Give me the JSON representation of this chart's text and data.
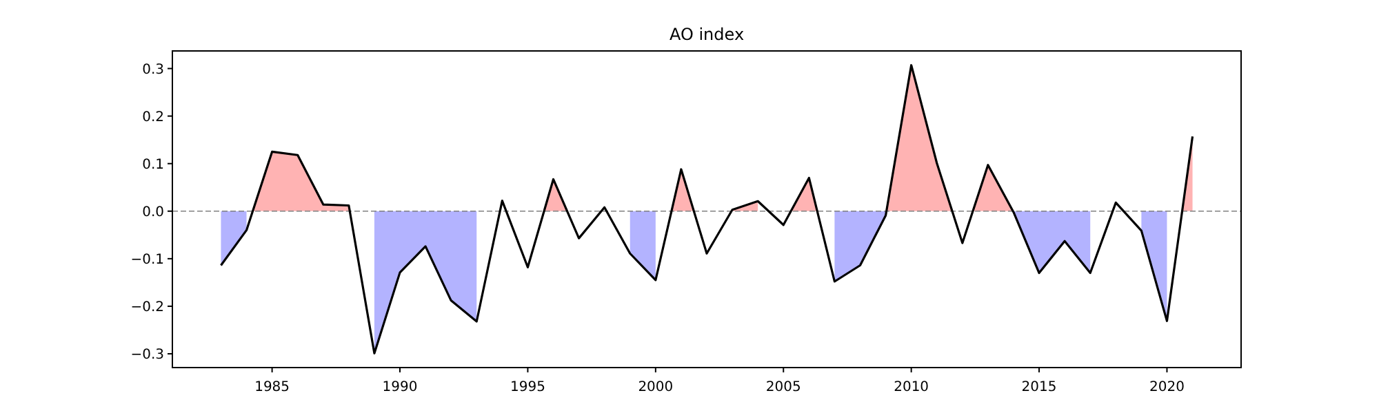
{
  "chart_data": {
    "type": "line",
    "title": "AO index",
    "x": [
      1983,
      1984,
      1985,
      1986,
      1987,
      1988,
      1989,
      1990,
      1991,
      1992,
      1993,
      1994,
      1995,
      1996,
      1997,
      1998,
      1999,
      2000,
      2001,
      2002,
      2003,
      2004,
      2005,
      2006,
      2007,
      2008,
      2009,
      2010,
      2011,
      2012,
      2013,
      2014,
      2015,
      2016,
      2017,
      2018,
      2019,
      2020,
      2021
    ],
    "series": [
      {
        "type": "area",
        "color": "#ffb3b3",
        "x": [
          1984.24,
          1985,
          1986,
          1987,
          1988,
          1988.5,
          1995.64,
          1996,
          1996.54,
          1997,
          2000.62,
          2001,
          2001.5,
          2002,
          2003,
          2004,
          2004.5,
          2005.29,
          2006,
          2006.32,
          2007,
          2009.03,
          2010,
          2011,
          2011.6,
          2012,
          2012.41,
          2013,
          2013.98,
          2014,
          2020.6,
          2021
        ],
        "values": [
          0,
          0.125,
          0.118,
          0.014,
          0.012,
          null,
          0,
          0.067,
          0,
          null,
          0,
          0.088,
          0,
          null,
          0.003,
          0.021,
          null,
          0,
          0.07,
          0,
          null,
          0,
          0.307,
          0.101,
          0,
          null,
          0,
          0.097,
          0,
          null,
          0,
          0.157
        ]
      },
      {
        "type": "area",
        "color": "#b3b3ff",
        "x": [
          1983,
          1984,
          1986,
          1989,
          1990,
          1991,
          1992,
          1993,
          1995,
          1999,
          2000,
          2003,
          2007,
          2008,
          2009,
          2010,
          2014,
          2015,
          2016,
          2017,
          2018,
          2019,
          2020
        ],
        "values": [
          -0.114,
          -0.04,
          null,
          -0.299,
          -0.129,
          -0.074,
          -0.188,
          -0.232,
          null,
          -0.089,
          -0.145,
          null,
          -0.148,
          -0.114,
          -0.009,
          null,
          -0.002,
          -0.13,
          -0.063,
          -0.13,
          null,
          -0.041,
          -0.231
        ]
      },
      {
        "color": "#000000",
        "values": [
          -0.114,
          -0.04,
          0.125,
          0.118,
          0.014,
          0.012,
          -0.299,
          -0.129,
          -0.074,
          -0.188,
          -0.232,
          0.022,
          -0.118,
          0.067,
          -0.057,
          0.008,
          -0.089,
          -0.145,
          0.088,
          -0.089,
          0.003,
          0.021,
          -0.029,
          0.07,
          -0.148,
          -0.114,
          -0.009,
          0.307,
          0.101,
          -0.067,
          0.097,
          -0.002,
          -0.13,
          -0.063,
          -0.13,
          0.018,
          -0.041,
          -0.231,
          0.157
        ]
      }
    ],
    "xlim": [
      1981.1,
      2022.9
    ],
    "xticks": [
      1985,
      1990,
      1995,
      2000,
      2005,
      2010,
      2015,
      2020
    ],
    "ylim": [
      -0.329,
      0.337
    ],
    "yticks": [
      {
        "value": -0.3,
        "label": "−0.3"
      },
      {
        "value": -0.2,
        "label": "−0.2"
      },
      {
        "value": -0.1,
        "label": "−0.1"
      },
      {
        "value": 0,
        "label": "0.0"
      },
      {
        "value": 0.1,
        "label": "0.1"
      },
      {
        "value": 0.2,
        "label": "0.2"
      },
      {
        "value": 0.3,
        "label": "0.3"
      }
    ],
    "ref_lines": [
      {
        "axis": "y",
        "value": 0,
        "color": "#808080",
        "line_style": "dashed"
      }
    ]
  }
}
